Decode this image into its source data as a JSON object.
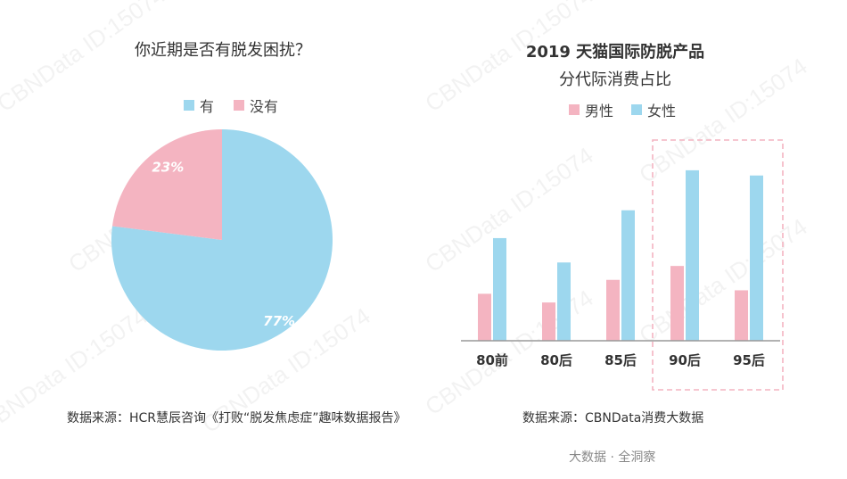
{
  "watermark": "CBNData ID:15074",
  "left": {
    "title": "你近期是否有脱发困扰？",
    "source": "数据来源：HCR慧辰咨询《打败“脱发焦虑症”趣味数据报告》"
  },
  "right": {
    "title_line1": "2019 天猫国际防脱产品",
    "title_line2": "分代际消费占比",
    "source": "数据来源：CBNData消费大数据"
  },
  "footer": "大数据 · 全洞察",
  "chart_data": [
    {
      "type": "pie",
      "title": "你近期是否有脱发困扰？",
      "labels": [
        "有",
        "没有"
      ],
      "values": [
        77,
        23
      ],
      "value_labels": [
        "77%",
        "23%"
      ],
      "colors": [
        "#9dd7ee",
        "#f4b4c1"
      ],
      "legend": "top"
    },
    {
      "type": "bar",
      "title": "2019 天猫国际防脱产品 分代际消费占比",
      "categories": [
        "80前",
        "80后",
        "85后",
        "90后",
        "95后"
      ],
      "series": [
        {
          "name": "男性",
          "color": "#f4b4c1",
          "values": [
            27,
            22,
            35,
            43,
            29
          ]
        },
        {
          "name": "女性",
          "color": "#9dd7ee",
          "values": [
            59,
            45,
            75,
            98,
            95
          ]
        }
      ],
      "ylim": [
        0,
        100
      ],
      "highlight": [
        "90后",
        "95后"
      ],
      "legend": "top"
    }
  ]
}
